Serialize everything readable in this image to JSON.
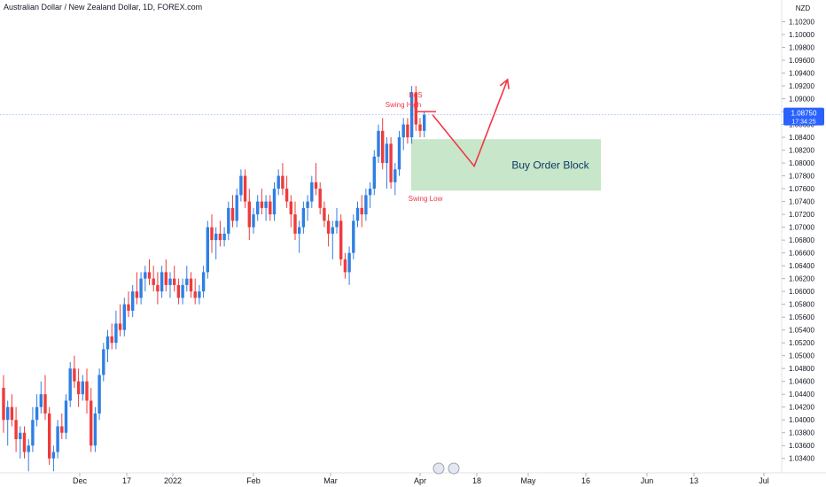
{
  "header": {
    "title": "Australian Dollar / New Zealand Dollar, 1D, FOREX.com",
    "currency": "NZD"
  },
  "colors": {
    "up": "#2f7fe3",
    "down": "#ef3b3b",
    "annotation": "#f23645",
    "zone_fill": "#c8e6c9",
    "zone_text": "#0d3b66",
    "price_line": "#2962ff",
    "price_badge": "#2962ff"
  },
  "price_badge": {
    "price": "1.08750",
    "countdown": "17:34:25"
  },
  "chart_data": {
    "type": "candlestick",
    "ylim": [
      1.033,
      1.104
    ],
    "y_ticks": [
      "1.10200",
      "1.10000",
      "1.09800",
      "1.09600",
      "1.09400",
      "1.09200",
      "1.09000",
      "1.08800",
      "1.08600",
      "1.08400",
      "1.08200",
      "1.08000",
      "1.07800",
      "1.07600",
      "1.07400",
      "1.07200",
      "1.07000",
      "1.06800",
      "1.06600",
      "1.06400",
      "1.06200",
      "1.06000",
      "1.05800",
      "1.05600",
      "1.05400",
      "1.05200",
      "1.05000",
      "1.04800",
      "1.04600",
      "1.04400",
      "1.04200",
      "1.04000",
      "1.03800",
      "1.03600",
      "1.03400"
    ],
    "x_ticks": [
      "Dec",
      "17",
      "2022",
      "Feb",
      "Mar",
      "Apr",
      "18",
      "May",
      "16",
      "Jun",
      "13",
      "Jul"
    ],
    "candles": [
      {
        "o": 1.045,
        "h": 1.047,
        "l": 1.038,
        "c": 1.04
      },
      {
        "o": 1.04,
        "h": 1.043,
        "l": 1.036,
        "c": 1.042
      },
      {
        "o": 1.042,
        "h": 1.044,
        "l": 1.039,
        "c": 1.04
      },
      {
        "o": 1.04,
        "h": 1.042,
        "l": 1.035,
        "c": 1.037
      },
      {
        "o": 1.037,
        "h": 1.039,
        "l": 1.034,
        "c": 1.038
      },
      {
        "o": 1.038,
        "h": 1.039,
        "l": 1.034,
        "c": 1.035
      },
      {
        "o": 1.035,
        "h": 1.037,
        "l": 1.032,
        "c": 1.036
      },
      {
        "o": 1.036,
        "h": 1.042,
        "l": 1.035,
        "c": 1.04
      },
      {
        "o": 1.04,
        "h": 1.044,
        "l": 1.039,
        "c": 1.042
      },
      {
        "o": 1.042,
        "h": 1.046,
        "l": 1.041,
        "c": 1.044
      },
      {
        "o": 1.044,
        "h": 1.047,
        "l": 1.04,
        "c": 1.041
      },
      {
        "o": 1.041,
        "h": 1.042,
        "l": 1.033,
        "c": 1.034
      },
      {
        "o": 1.034,
        "h": 1.036,
        "l": 1.032,
        "c": 1.035
      },
      {
        "o": 1.035,
        "h": 1.04,
        "l": 1.034,
        "c": 1.039
      },
      {
        "o": 1.039,
        "h": 1.041,
        "l": 1.037,
        "c": 1.038
      },
      {
        "o": 1.038,
        "h": 1.044,
        "l": 1.037,
        "c": 1.043
      },
      {
        "o": 1.043,
        "h": 1.049,
        "l": 1.042,
        "c": 1.048
      },
      {
        "o": 1.048,
        "h": 1.05,
        "l": 1.045,
        "c": 1.046
      },
      {
        "o": 1.046,
        "h": 1.048,
        "l": 1.042,
        "c": 1.044
      },
      {
        "o": 1.044,
        "h": 1.047,
        "l": 1.043,
        "c": 1.046
      },
      {
        "o": 1.046,
        "h": 1.048,
        "l": 1.041,
        "c": 1.043
      },
      {
        "o": 1.043,
        "h": 1.045,
        "l": 1.035,
        "c": 1.036
      },
      {
        "o": 1.036,
        "h": 1.042,
        "l": 1.035,
        "c": 1.041
      },
      {
        "o": 1.041,
        "h": 1.048,
        "l": 1.04,
        "c": 1.047
      },
      {
        "o": 1.047,
        "h": 1.052,
        "l": 1.046,
        "c": 1.051
      },
      {
        "o": 1.051,
        "h": 1.054,
        "l": 1.049,
        "c": 1.053
      },
      {
        "o": 1.053,
        "h": 1.055,
        "l": 1.051,
        "c": 1.052
      },
      {
        "o": 1.052,
        "h": 1.057,
        "l": 1.051,
        "c": 1.055
      },
      {
        "o": 1.055,
        "h": 1.058,
        "l": 1.053,
        "c": 1.054
      },
      {
        "o": 1.054,
        "h": 1.059,
        "l": 1.053,
        "c": 1.058
      },
      {
        "o": 1.058,
        "h": 1.06,
        "l": 1.056,
        "c": 1.057
      },
      {
        "o": 1.057,
        "h": 1.061,
        "l": 1.056,
        "c": 1.06
      },
      {
        "o": 1.06,
        "h": 1.063,
        "l": 1.058,
        "c": 1.059
      },
      {
        "o": 1.059,
        "h": 1.063,
        "l": 1.058,
        "c": 1.062
      },
      {
        "o": 1.062,
        "h": 1.064,
        "l": 1.06,
        "c": 1.063
      },
      {
        "o": 1.063,
        "h": 1.065,
        "l": 1.061,
        "c": 1.062
      },
      {
        "o": 1.062,
        "h": 1.064,
        "l": 1.06,
        "c": 1.061
      },
      {
        "o": 1.061,
        "h": 1.063,
        "l": 1.058,
        "c": 1.06
      },
      {
        "o": 1.06,
        "h": 1.064,
        "l": 1.059,
        "c": 1.063
      },
      {
        "o": 1.063,
        "h": 1.065,
        "l": 1.06,
        "c": 1.061
      },
      {
        "o": 1.061,
        "h": 1.063,
        "l": 1.059,
        "c": 1.062
      },
      {
        "o": 1.062,
        "h": 1.064,
        "l": 1.06,
        "c": 1.061
      },
      {
        "o": 1.061,
        "h": 1.062,
        "l": 1.058,
        "c": 1.059
      },
      {
        "o": 1.059,
        "h": 1.062,
        "l": 1.058,
        "c": 1.061
      },
      {
        "o": 1.061,
        "h": 1.064,
        "l": 1.06,
        "c": 1.062
      },
      {
        "o": 1.062,
        "h": 1.063,
        "l": 1.059,
        "c": 1.06
      },
      {
        "o": 1.06,
        "h": 1.062,
        "l": 1.058,
        "c": 1.059
      },
      {
        "o": 1.059,
        "h": 1.061,
        "l": 1.058,
        "c": 1.06
      },
      {
        "o": 1.06,
        "h": 1.064,
        "l": 1.059,
        "c": 1.063
      },
      {
        "o": 1.063,
        "h": 1.071,
        "l": 1.062,
        "c": 1.07
      },
      {
        "o": 1.07,
        "h": 1.072,
        "l": 1.066,
        "c": 1.068
      },
      {
        "o": 1.068,
        "h": 1.07,
        "l": 1.065,
        "c": 1.069
      },
      {
        "o": 1.069,
        "h": 1.071,
        "l": 1.067,
        "c": 1.068
      },
      {
        "o": 1.068,
        "h": 1.07,
        "l": 1.067,
        "c": 1.069
      },
      {
        "o": 1.069,
        "h": 1.074,
        "l": 1.068,
        "c": 1.073
      },
      {
        "o": 1.073,
        "h": 1.075,
        "l": 1.07,
        "c": 1.071
      },
      {
        "o": 1.071,
        "h": 1.076,
        "l": 1.07,
        "c": 1.075
      },
      {
        "o": 1.075,
        "h": 1.079,
        "l": 1.074,
        "c": 1.078
      },
      {
        "o": 1.078,
        "h": 1.079,
        "l": 1.073,
        "c": 1.074
      },
      {
        "o": 1.074,
        "h": 1.076,
        "l": 1.068,
        "c": 1.07
      },
      {
        "o": 1.07,
        "h": 1.073,
        "l": 1.069,
        "c": 1.072
      },
      {
        "o": 1.072,
        "h": 1.075,
        "l": 1.071,
        "c": 1.074
      },
      {
        "o": 1.074,
        "h": 1.076,
        "l": 1.072,
        "c": 1.073
      },
      {
        "o": 1.073,
        "h": 1.075,
        "l": 1.071,
        "c": 1.074
      },
      {
        "o": 1.074,
        "h": 1.075,
        "l": 1.071,
        "c": 1.072
      },
      {
        "o": 1.072,
        "h": 1.077,
        "l": 1.071,
        "c": 1.076
      },
      {
        "o": 1.076,
        "h": 1.079,
        "l": 1.075,
        "c": 1.078
      },
      {
        "o": 1.078,
        "h": 1.08,
        "l": 1.075,
        "c": 1.076
      },
      {
        "o": 1.076,
        "h": 1.078,
        "l": 1.073,
        "c": 1.074
      },
      {
        "o": 1.074,
        "h": 1.075,
        "l": 1.07,
        "c": 1.072
      },
      {
        "o": 1.072,
        "h": 1.074,
        "l": 1.068,
        "c": 1.069
      },
      {
        "o": 1.069,
        "h": 1.071,
        "l": 1.066,
        "c": 1.07
      },
      {
        "o": 1.07,
        "h": 1.074,
        "l": 1.069,
        "c": 1.073
      },
      {
        "o": 1.073,
        "h": 1.075,
        "l": 1.071,
        "c": 1.074
      },
      {
        "o": 1.074,
        "h": 1.078,
        "l": 1.073,
        "c": 1.077
      },
      {
        "o": 1.077,
        "h": 1.08,
        "l": 1.075,
        "c": 1.076
      },
      {
        "o": 1.076,
        "h": 1.077,
        "l": 1.072,
        "c": 1.073
      },
      {
        "o": 1.073,
        "h": 1.074,
        "l": 1.07,
        "c": 1.071
      },
      {
        "o": 1.071,
        "h": 1.072,
        "l": 1.067,
        "c": 1.069
      },
      {
        "o": 1.069,
        "h": 1.071,
        "l": 1.065,
        "c": 1.07
      },
      {
        "o": 1.07,
        "h": 1.073,
        "l": 1.069,
        "c": 1.071
      },
      {
        "o": 1.071,
        "h": 1.072,
        "l": 1.064,
        "c": 1.065
      },
      {
        "o": 1.065,
        "h": 1.066,
        "l": 1.062,
        "c": 1.063
      },
      {
        "o": 1.063,
        "h": 1.067,
        "l": 1.061,
        "c": 1.066
      },
      {
        "o": 1.066,
        "h": 1.072,
        "l": 1.065,
        "c": 1.071
      },
      {
        "o": 1.071,
        "h": 1.074,
        "l": 1.07,
        "c": 1.073
      },
      {
        "o": 1.073,
        "h": 1.075,
        "l": 1.07,
        "c": 1.072
      },
      {
        "o": 1.072,
        "h": 1.076,
        "l": 1.071,
        "c": 1.075
      },
      {
        "o": 1.075,
        "h": 1.077,
        "l": 1.073,
        "c": 1.076
      },
      {
        "o": 1.076,
        "h": 1.082,
        "l": 1.075,
        "c": 1.081
      },
      {
        "o": 1.081,
        "h": 1.086,
        "l": 1.08,
        "c": 1.085
      },
      {
        "o": 1.085,
        "h": 1.087,
        "l": 1.079,
        "c": 1.08
      },
      {
        "o": 1.08,
        "h": 1.084,
        "l": 1.076,
        "c": 1.083
      },
      {
        "o": 1.083,
        "h": 1.084,
        "l": 1.076,
        "c": 1.077
      },
      {
        "o": 1.077,
        "h": 1.08,
        "l": 1.075,
        "c": 1.079
      },
      {
        "o": 1.079,
        "h": 1.085,
        "l": 1.078,
        "c": 1.084
      },
      {
        "o": 1.084,
        "h": 1.087,
        "l": 1.082,
        "c": 1.086
      },
      {
        "o": 1.086,
        "h": 1.087,
        "l": 1.083,
        "c": 1.084
      },
      {
        "o": 1.084,
        "h": 1.092,
        "l": 1.083,
        "c": 1.091
      },
      {
        "o": 1.091,
        "h": 1.092,
        "l": 1.085,
        "c": 1.086
      },
      {
        "o": 1.086,
        "h": 1.087,
        "l": 1.084,
        "c": 1.085
      },
      {
        "o": 1.085,
        "h": 1.088,
        "l": 1.084,
        "c": 1.0875
      }
    ],
    "annotations": {
      "swing_high": {
        "label": "Swing High",
        "price": 1.088
      },
      "bos": {
        "label": "BoS"
      },
      "swing_low": {
        "label": "Swing Low",
        "price": 1.076
      },
      "zone": {
        "label": "Buy Order Block",
        "top": 1.0837,
        "bottom": 1.0757
      },
      "projection": [
        {
          "bar": 103,
          "price": 1.0875
        },
        {
          "bar": 113,
          "price": 1.0795
        },
        {
          "bar": 121,
          "price": 1.093
        }
      ]
    }
  }
}
